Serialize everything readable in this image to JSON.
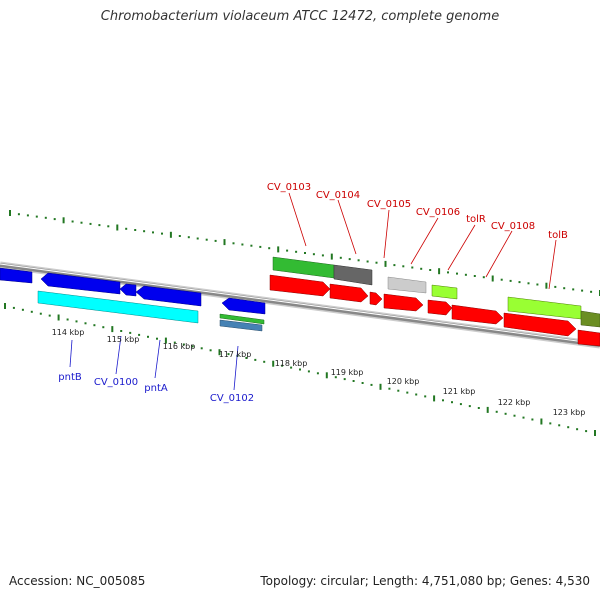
{
  "title": "Chromobacterium violaceum ATCC 12472, complete genome",
  "footer": {
    "accession": "Accession: NC_005085",
    "topology": "Topology: circular; Length: 4,751,080 bp; Genes: 4,530"
  },
  "ruler": {
    "labels": [
      "114 kbp",
      "115 kbp",
      "116 kbp",
      "117 kbp",
      "118 kbp",
      "119 kbp",
      "120 kbp",
      "121 kbp",
      "122 kbp",
      "123 kbp"
    ]
  },
  "top_labels": [
    {
      "text": "CV_0103",
      "color": "#cc0000"
    },
    {
      "text": "CV_0104",
      "color": "#cc0000"
    },
    {
      "text": "CV_0105",
      "color": "#cc0000"
    },
    {
      "text": "CV_0106",
      "color": "#cc0000"
    },
    {
      "text": "tolR",
      "color": "#cc0000"
    },
    {
      "text": "CV_0108",
      "color": "#cc0000"
    },
    {
      "text": "tolB",
      "color": "#cc0000"
    }
  ],
  "bottom_labels": [
    {
      "text": "pntB",
      "color": "#1a1acc"
    },
    {
      "text": "CV_0100",
      "color": "#1a1acc"
    },
    {
      "text": "pntA",
      "color": "#1a1acc"
    },
    {
      "text": "CV_0102",
      "color": "#1a1acc"
    }
  ],
  "colors": {
    "forward_cds": "#ff0000",
    "reverse_cds": "#0000ee",
    "cyan_track": "#00ffff",
    "green_track": "#33bb33",
    "dark_gray": "#666666",
    "light_gray": "#cccccc",
    "lime": "#99ff33",
    "olive": "#6b8e23",
    "steel_blue": "#4682b4",
    "tick_green": "#227722",
    "backbone": "#888888"
  }
}
